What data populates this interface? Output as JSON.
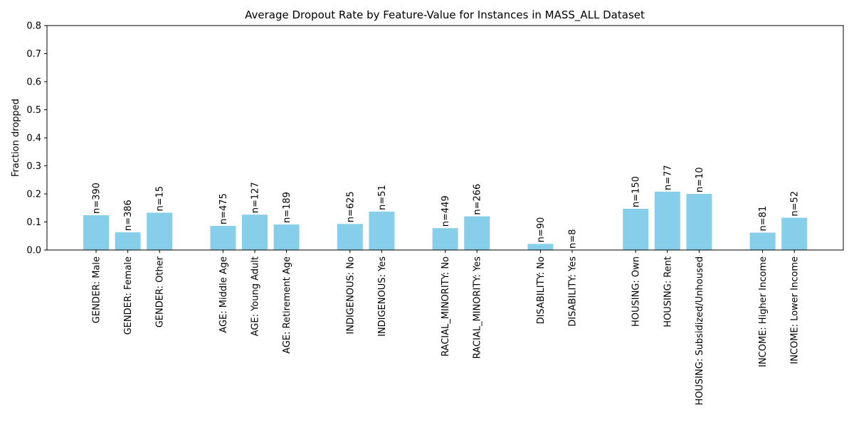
{
  "chart_data": {
    "type": "bar",
    "title": "Average Dropout Rate by Feature-Value for Instances in MASS_ALL Dataset",
    "xlabel": "",
    "ylabel": "Fraction dropped",
    "ylim": [
      0,
      0.8
    ],
    "yticks": [
      "0.0",
      "0.1",
      "0.2",
      "0.3",
      "0.4",
      "0.5",
      "0.6",
      "0.7",
      "0.8"
    ],
    "grid": false,
    "bar_color": "#87ceeb",
    "groups": [
      {
        "items": [
          {
            "label": "GENDER: Male",
            "value": 0.124,
            "count": "n=390"
          },
          {
            "label": "GENDER: Female",
            "value": 0.063,
            "count": "n=386"
          },
          {
            "label": "GENDER: Other",
            "value": 0.133,
            "count": "n=15"
          }
        ]
      },
      {
        "items": [
          {
            "label": "AGE: Middle Age",
            "value": 0.086,
            "count": "n=475"
          },
          {
            "label": "AGE: Young Adult",
            "value": 0.126,
            "count": "n=127"
          },
          {
            "label": "AGE: Retirement Age",
            "value": 0.091,
            "count": "n=189"
          }
        ]
      },
      {
        "items": [
          {
            "label": "INDIGENOUS: No",
            "value": 0.093,
            "count": "n=625"
          },
          {
            "label": "INDIGENOUS: Yes",
            "value": 0.137,
            "count": "n=51"
          }
        ]
      },
      {
        "items": [
          {
            "label": "RACIAL_MINORITY: No",
            "value": 0.078,
            "count": "n=449"
          },
          {
            "label": "RACIAL_MINORITY: Yes",
            "value": 0.12,
            "count": "n=266"
          }
        ]
      },
      {
        "items": [
          {
            "label": "DISABILITY: No",
            "value": 0.022,
            "count": "n=90"
          },
          {
            "label": "DISABILITY: Yes",
            "value": 0.0,
            "count": "n=8"
          }
        ]
      },
      {
        "items": [
          {
            "label": "HOUSING: Own",
            "value": 0.147,
            "count": "n=150"
          },
          {
            "label": "HOUSING: Rent",
            "value": 0.208,
            "count": "n=77"
          },
          {
            "label": "HOUSING: Subsidized/Unhoused",
            "value": 0.2,
            "count": "n=10"
          }
        ]
      },
      {
        "items": [
          {
            "label": "INCOME: Higher Income",
            "value": 0.062,
            "count": "n=81"
          },
          {
            "label": "INCOME: Lower Income",
            "value": 0.115,
            "count": "n=52"
          }
        ]
      }
    ]
  }
}
